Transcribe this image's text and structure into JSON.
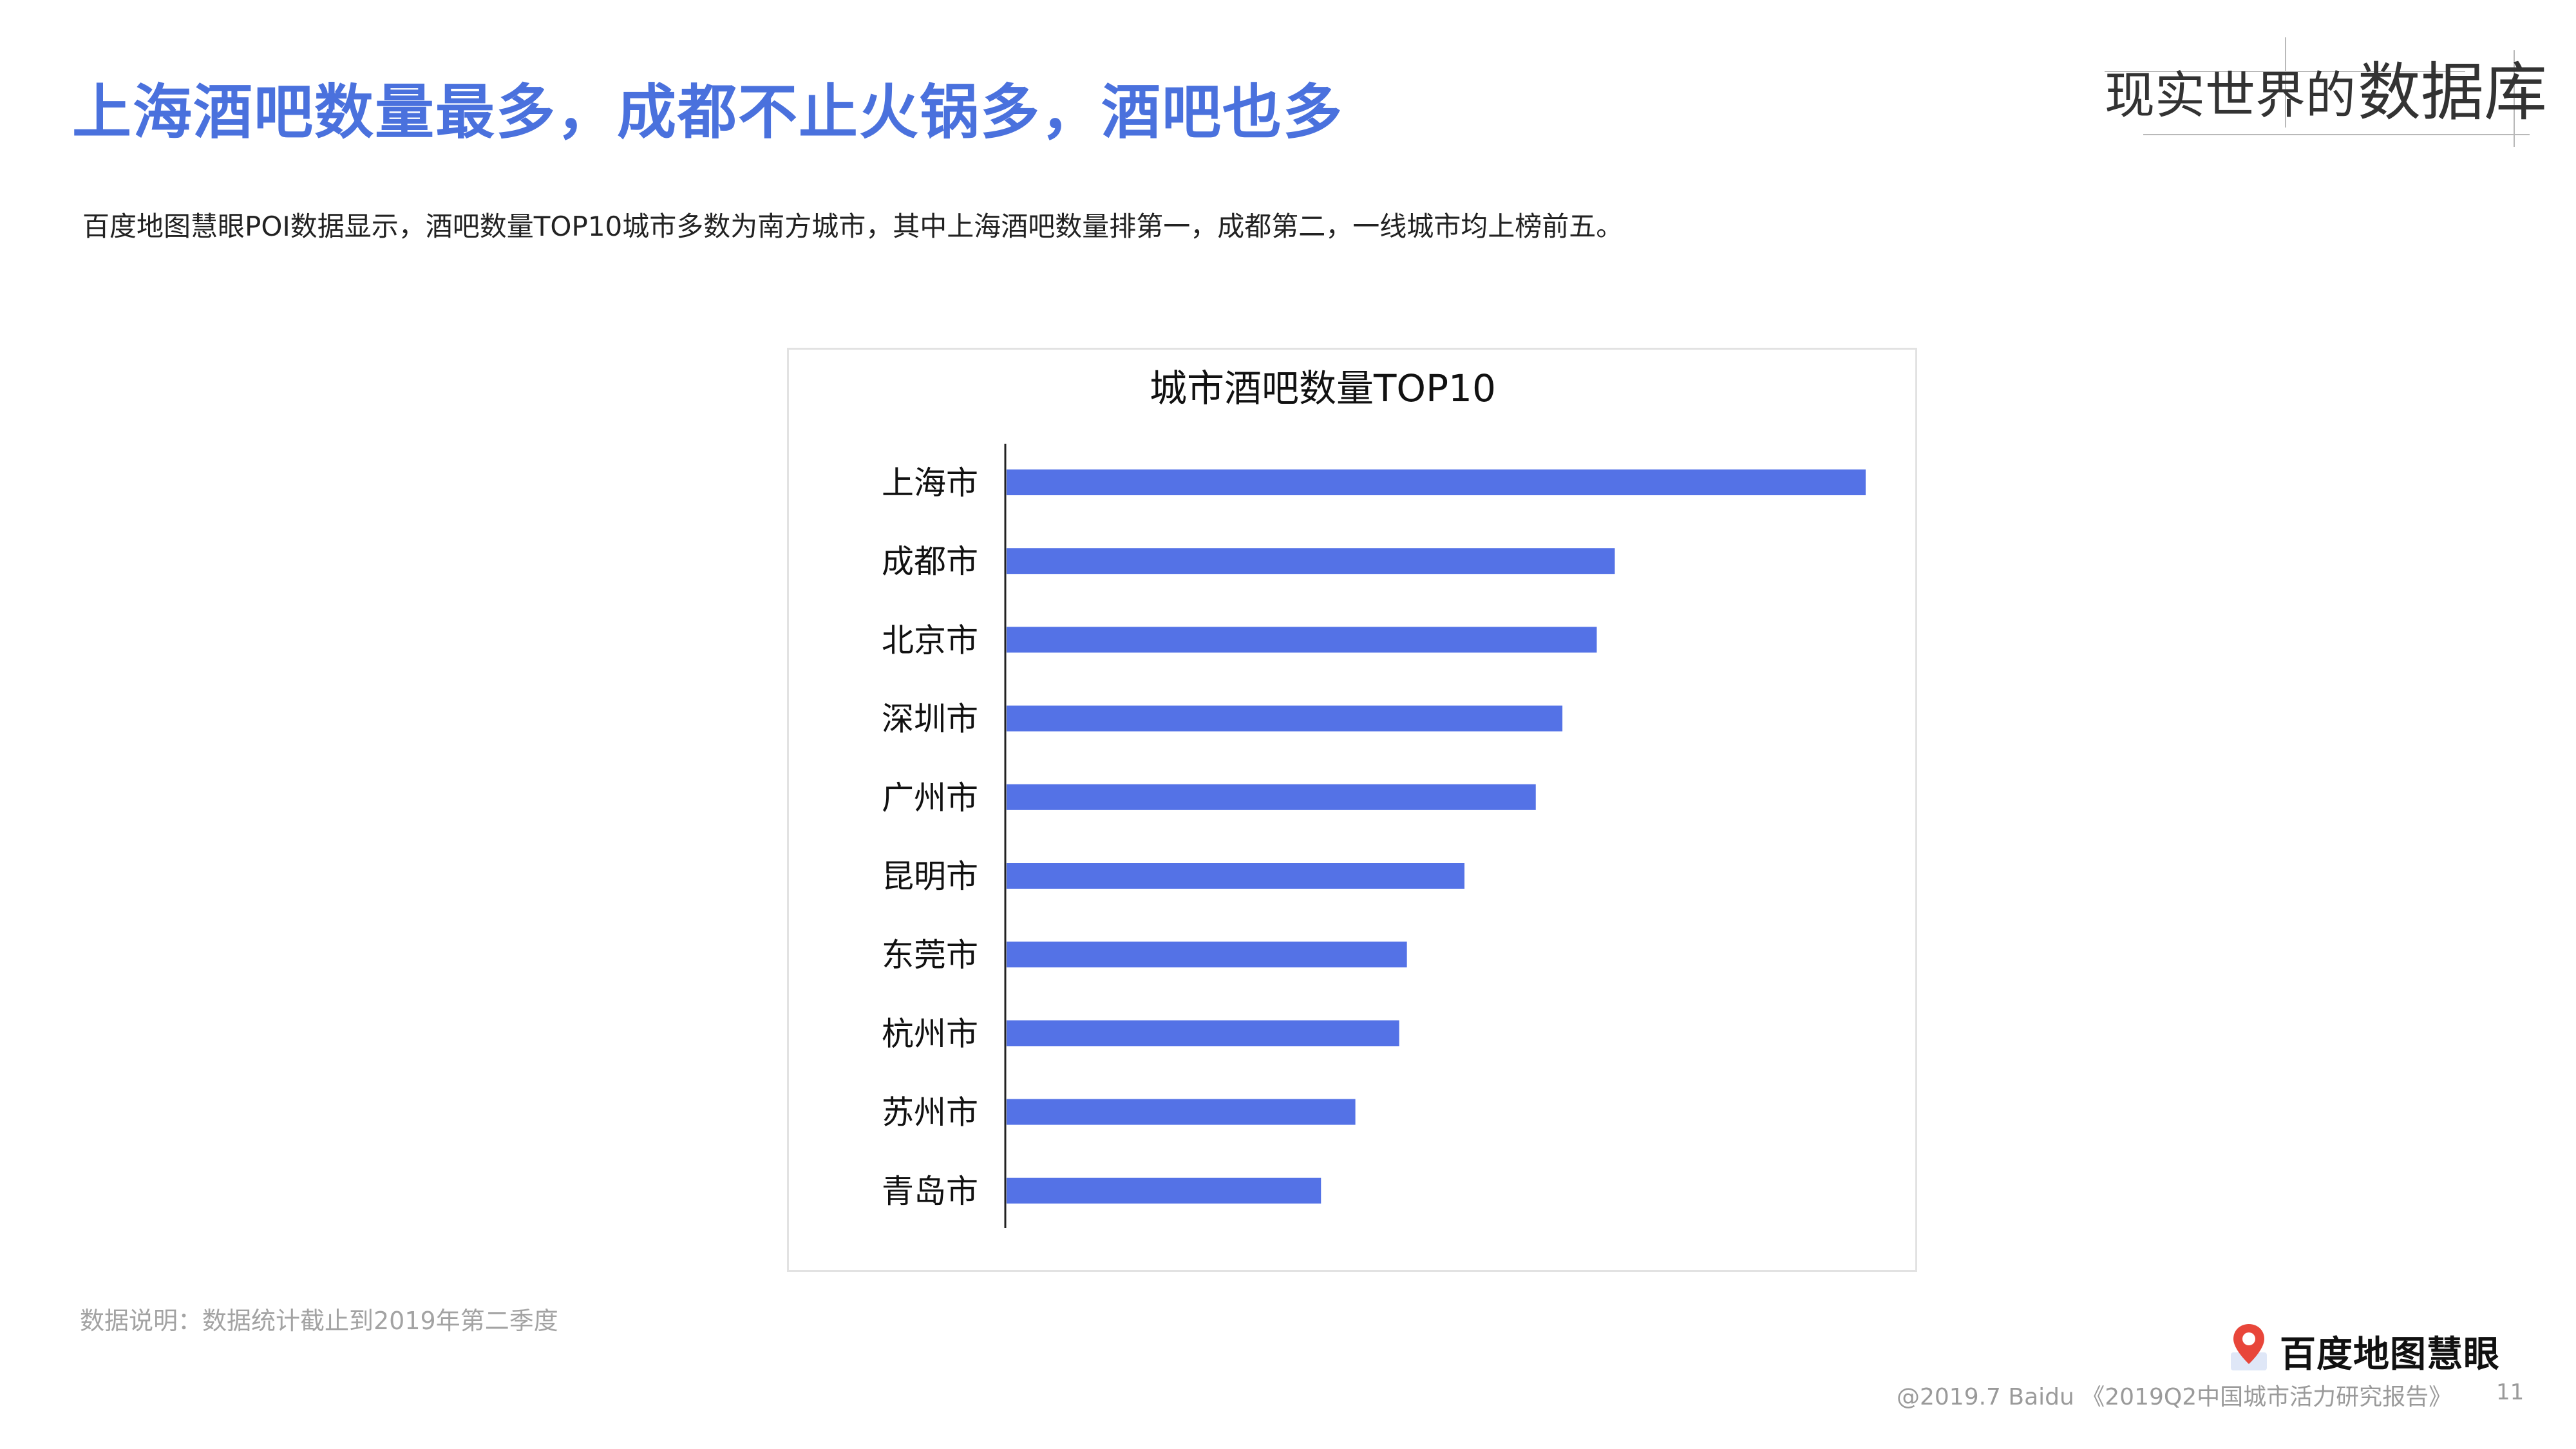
{
  "header": {
    "headline": "上海酒吧数量最多，成都不止火锅多，酒吧也多",
    "slogan_part1": "现实世界的",
    "slogan_part2": "数据库"
  },
  "subtitle": "百度地图慧眼POI数据显示，酒吧数量TOP10城市多数为南方城市，其中上海酒吧数量排第一，成都第二，一线城市均上榜前五。",
  "chart_data": {
    "type": "bar",
    "orientation": "horizontal",
    "title": "城市酒吧数量TOP10",
    "categories": [
      "上海市",
      "成都市",
      "北京市",
      "深圳市",
      "广州市",
      "昆明市",
      "东莞市",
      "杭州市",
      "苏州市",
      "青岛市"
    ],
    "values": [
      100,
      70.8,
      68.7,
      64.7,
      61.6,
      53.3,
      46.6,
      45.7,
      40.6,
      36.6
    ],
    "xlim": [
      0,
      100
    ],
    "grid": false,
    "bar_color": "#5472e6"
  },
  "note": "数据说明：数据统计截止到2019年第二季度",
  "footer": {
    "logo_text": "百度地图慧眼",
    "reference": "@2019.7 Baidu 《2019Q2中国城市活力研究报告》",
    "page_number": "11"
  },
  "colors": {
    "headline": "#4a71dd",
    "bar": "#5472e6",
    "logo_pin": "#e8463a"
  }
}
